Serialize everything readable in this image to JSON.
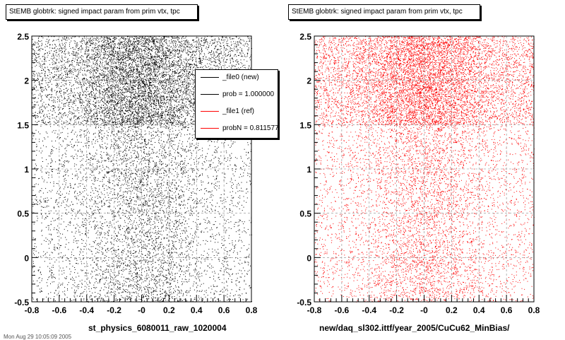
{
  "panels": [
    {
      "title": "StEMB globtrk: signed impact param from prim vtx, tpc",
      "caption": "st_physics_6080011_raw_1020004",
      "color": "#000000"
    },
    {
      "title": "StEMB globtrk: signed impact param from prim vtx, tpc",
      "caption": "new/daq_sl302.ittf/year_2005/CuCu62_MinBias/",
      "color": "#ff0000"
    }
  ],
  "legend": {
    "items": [
      {
        "label": "_file0 (new)",
        "color": "#000000"
      },
      {
        "label": "prob = 1.000000",
        "color": "#000000"
      },
      {
        "label": "_file1 (ref)",
        "color": "#ff0000"
      },
      {
        "label": "probN = 0.811577",
        "color": "#ff0000"
      }
    ]
  },
  "footer": "Mon Aug 29 10:05:09 2005",
  "chart_data": [
    {
      "type": "scatter",
      "title": "StEMB globtrk: signed impact param from prim vtx, tpc",
      "xlabel": "st_physics_6080011_raw_1020004",
      "ylabel": "",
      "xlim": [
        -0.8,
        0.8
      ],
      "ylim": [
        -0.5,
        2.5
      ],
      "xticks": [
        "-0.8",
        "-0.6",
        "-0.4",
        "-0.2",
        "-0",
        "0.2",
        "0.4",
        "0.6",
        "0.8"
      ],
      "yticks": [
        "-0.5",
        "0",
        "0.5",
        "1",
        "1.5",
        "2",
        "2.5"
      ],
      "grid": true,
      "series": [
        {
          "name": "_file0 (new)",
          "color": "#000000",
          "regions": [
            {
              "y_range": [
                -0.5,
                1.5
              ],
              "peak_x": 0,
              "width_x": 0.25,
              "relative_density": 0.35
            },
            {
              "y_range": [
                1.5,
                2.5
              ],
              "peak_x": 0,
              "width_x": 0.25,
              "relative_density": 1.0
            }
          ]
        }
      ]
    },
    {
      "type": "scatter",
      "title": "StEMB globtrk: signed impact param from prim vtx, tpc",
      "xlabel": "new/daq_sl302.ittf/year_2005/CuCu62_MinBias/",
      "ylabel": "",
      "xlim": [
        -0.8,
        0.8
      ],
      "ylim": [
        -0.5,
        2.5
      ],
      "xticks": [
        "-0.8",
        "-0.6",
        "-0.4",
        "-0.2",
        "-0",
        "0.2",
        "0.4",
        "0.6",
        "0.8"
      ],
      "yticks": [
        "-0.5",
        "0",
        "0.5",
        "1",
        "1.5",
        "2",
        "2.5"
      ],
      "grid": true,
      "series": [
        {
          "name": "_file1 (ref)",
          "color": "#ff0000",
          "regions": [
            {
              "y_range": [
                -0.5,
                1.5
              ],
              "peak_x": 0,
              "width_x": 0.25,
              "relative_density": 0.35
            },
            {
              "y_range": [
                1.5,
                2.5
              ],
              "peak_x": 0,
              "width_x": 0.25,
              "relative_density": 1.0
            }
          ]
        }
      ]
    }
  ]
}
